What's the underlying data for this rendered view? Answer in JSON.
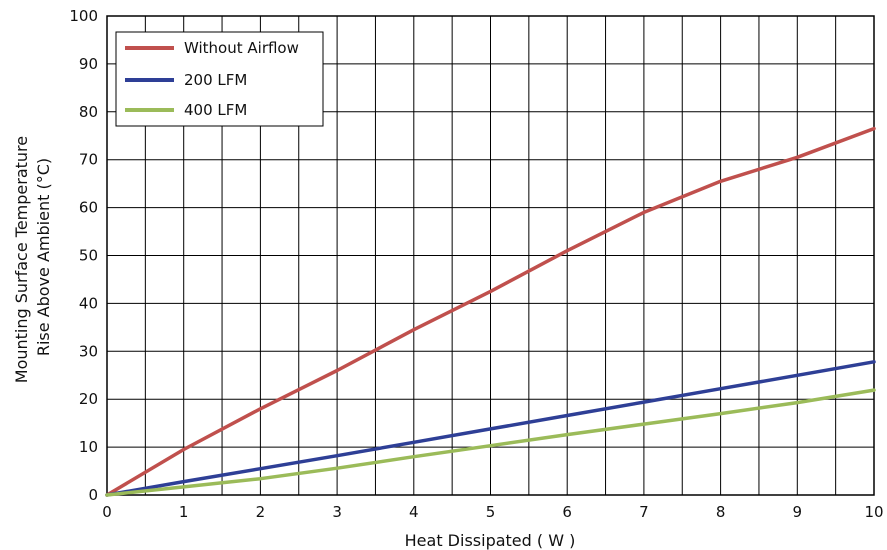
{
  "chart_data": {
    "type": "line",
    "title": "",
    "xlabel": "Heat Dissipated ( W )",
    "ylabel_lines": [
      "Mounting Surface Temperature",
      "Rise Above  Ambient (°C)"
    ],
    "xlim": [
      0,
      10
    ],
    "ylim": [
      0,
      100
    ],
    "x_major_ticks": [
      "0",
      "1",
      "2",
      "3",
      "4",
      "5",
      "6",
      "7",
      "8",
      "9",
      "10"
    ],
    "y_major_ticks": [
      "0",
      "10",
      "20",
      "30",
      "40",
      "50",
      "60",
      "70",
      "80",
      "90",
      "100"
    ],
    "grid": "on",
    "legend_position": "top-left",
    "series": [
      {
        "name": "Without Airflow",
        "color": "#c0504d",
        "points": [
          [
            0,
            0
          ],
          [
            1,
            9.5
          ],
          [
            2,
            18
          ],
          [
            3,
            26
          ],
          [
            4,
            34.5
          ],
          [
            5,
            42.5
          ],
          [
            6,
            51
          ],
          [
            7,
            59
          ],
          [
            8,
            65.5
          ],
          [
            9,
            70.5
          ],
          [
            10,
            76.5
          ]
        ]
      },
      {
        "name": "200 LFM",
        "color": "#2e3f96",
        "points": [
          [
            0,
            0
          ],
          [
            1,
            2.8
          ],
          [
            2,
            5.5
          ],
          [
            3,
            8.2
          ],
          [
            4,
            11
          ],
          [
            5,
            13.8
          ],
          [
            6,
            16.6
          ],
          [
            7,
            19.4
          ],
          [
            8,
            22.2
          ],
          [
            9,
            25
          ],
          [
            10,
            27.8
          ]
        ]
      },
      {
        "name": "400 LFM",
        "color": "#9bbb59",
        "points": [
          [
            0,
            0
          ],
          [
            1,
            1.7
          ],
          [
            2,
            3.4
          ],
          [
            3,
            5.6
          ],
          [
            4,
            8
          ],
          [
            5,
            10.3
          ],
          [
            6,
            12.6
          ],
          [
            7,
            14.8
          ],
          [
            8,
            17
          ],
          [
            9,
            19.3
          ],
          [
            10,
            21.9
          ]
        ]
      }
    ]
  }
}
